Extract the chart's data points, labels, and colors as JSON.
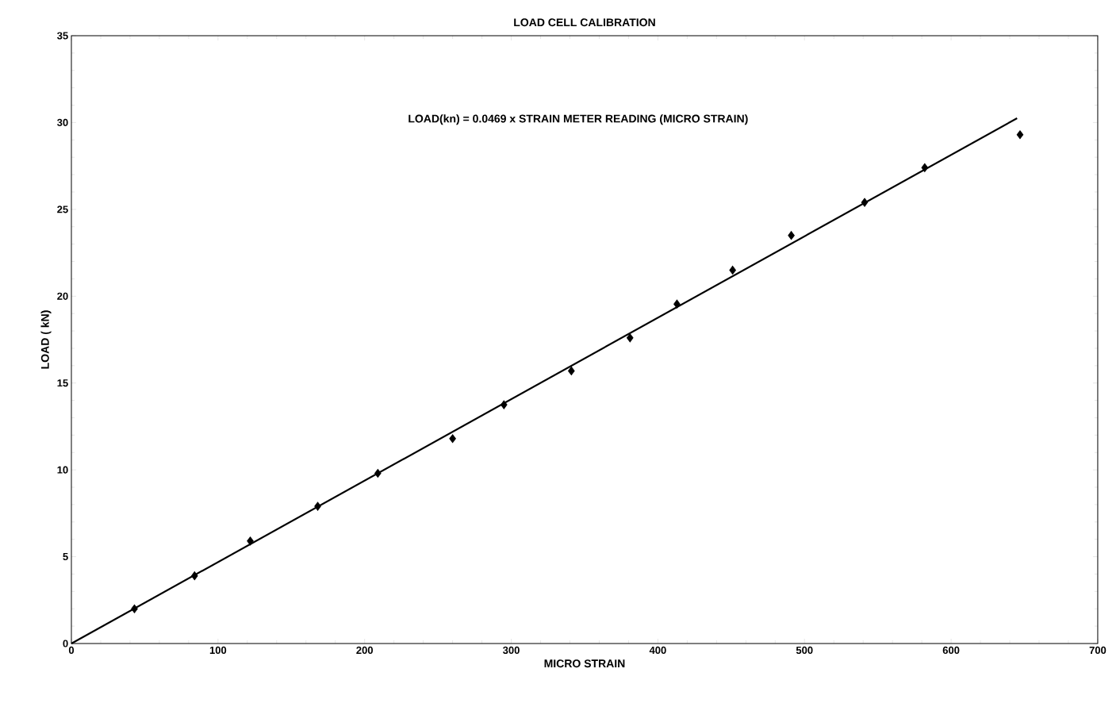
{
  "chart_data": {
    "type": "scatter",
    "title": "LOAD CELL CALIBRATION",
    "xlabel": "MICRO STRAIN",
    "ylabel": "LOAD ( kN)",
    "annotations": [
      "LOAD(kn) = 0.0469 x STRAIN METER READING (MICRO STRAIN)"
    ],
    "xlim": [
      0,
      700
    ],
    "ylim": [
      0,
      35
    ],
    "xticks": [
      0,
      100,
      200,
      300,
      400,
      500,
      600,
      700
    ],
    "yticks": [
      0,
      5,
      10,
      15,
      20,
      25,
      30,
      35
    ],
    "grid": false,
    "marker": "diamond",
    "series": [
      {
        "color": "#000000",
        "x": [
          43,
          84,
          122,
          168,
          209,
          260,
          295,
          341,
          381,
          413,
          451,
          491,
          541,
          582,
          647
        ],
        "values": [
          2.0,
          3.9,
          5.9,
          7.9,
          9.8,
          11.8,
          13.75,
          15.7,
          17.6,
          19.55,
          21.5,
          23.5,
          25.4,
          27.4,
          29.3
        ]
      },
      {
        "type": "line",
        "color": "#000000",
        "marker": "none",
        "line_style": "solid",
        "x": [
          0,
          645
        ],
        "values": [
          0,
          30.25
        ]
      }
    ]
  }
}
